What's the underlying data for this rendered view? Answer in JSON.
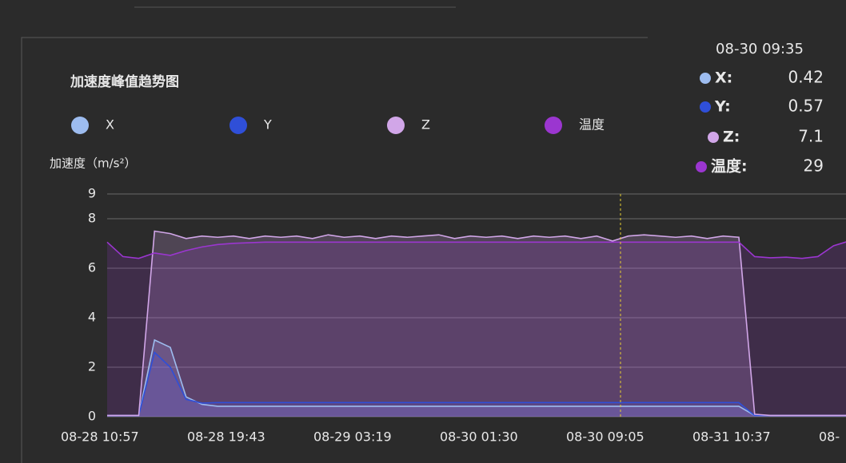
{
  "chart_data": {
    "type": "line",
    "title": "加速度峰值趋势图",
    "y_label": "加速度（m/s²）",
    "categories": [
      "08-28 10:57",
      null,
      null,
      null,
      null,
      null,
      null,
      null,
      "08-28 19:43",
      null,
      null,
      null,
      null,
      null,
      null,
      null,
      "08-29 03:19",
      null,
      null,
      null,
      null,
      null,
      null,
      null,
      "08-30 01:30",
      null,
      null,
      null,
      null,
      null,
      null,
      null,
      "08-30 09:05",
      null,
      null,
      null,
      null,
      null,
      null,
      null,
      "08-31 10:37",
      null,
      null,
      null,
      null,
      null,
      null,
      null,
      "08-"
    ],
    "series": [
      {
        "name": "X",
        "color": "#9dbcef",
        "values": [
          0.05,
          0.05,
          0.05,
          3.1,
          2.8,
          0.8,
          0.5,
          0.42,
          0.42,
          0.42,
          0.42,
          0.42,
          0.42,
          0.42,
          0.42,
          0.42,
          0.42,
          0.42,
          0.42,
          0.42,
          0.42,
          0.42,
          0.42,
          0.42,
          0.42,
          0.42,
          0.42,
          0.42,
          0.42,
          0.42,
          0.42,
          0.42,
          0.42,
          0.42,
          0.42,
          0.42,
          0.42,
          0.42,
          0.42,
          0.42,
          0.42,
          0.05,
          0.05,
          0.05,
          0.05,
          0.05,
          0.05,
          0.05,
          0.05
        ]
      },
      {
        "name": "Y",
        "color": "#2f4fd8",
        "values": [
          0.05,
          0.05,
          0.05,
          2.6,
          2.0,
          0.7,
          0.55,
          0.57,
          0.57,
          0.57,
          0.57,
          0.57,
          0.57,
          0.57,
          0.57,
          0.57,
          0.57,
          0.57,
          0.57,
          0.57,
          0.57,
          0.57,
          0.57,
          0.57,
          0.57,
          0.57,
          0.57,
          0.57,
          0.57,
          0.57,
          0.57,
          0.57,
          0.57,
          0.57,
          0.57,
          0.57,
          0.57,
          0.57,
          0.57,
          0.57,
          0.57,
          0.05,
          0.05,
          0.05,
          0.05,
          0.05,
          0.05,
          0.05,
          0.05
        ]
      },
      {
        "name": "Z",
        "color": "#d1a6e8",
        "values": [
          0.05,
          0.05,
          0.05,
          7.5,
          7.4,
          7.2,
          7.3,
          7.25,
          7.3,
          7.2,
          7.3,
          7.25,
          7.3,
          7.2,
          7.35,
          7.25,
          7.3,
          7.2,
          7.3,
          7.25,
          7.3,
          7.35,
          7.2,
          7.3,
          7.25,
          7.3,
          7.2,
          7.3,
          7.25,
          7.3,
          7.2,
          7.3,
          7.1,
          7.3,
          7.35,
          7.3,
          7.25,
          7.3,
          7.2,
          7.3,
          7.25,
          0.1,
          0.05,
          0.05,
          0.05,
          0.05,
          0.05,
          0.05,
          0.05
        ]
      },
      {
        "name": "温度",
        "color": "#9b36d0",
        "axis": "y2",
        "values": [
          29,
          26.6,
          26.3,
          27.2,
          26.8,
          27.6,
          28.2,
          28.6,
          28.8,
          28.9,
          29,
          29,
          29,
          29,
          29,
          29,
          29,
          29,
          29,
          29,
          29,
          29,
          29,
          29,
          29,
          29,
          29,
          29,
          29,
          29,
          29,
          29,
          29,
          29,
          29,
          29,
          29,
          29,
          29,
          29,
          29,
          26.6,
          26.4,
          26.5,
          26.3,
          26.6,
          28.4,
          29.2,
          29.4
        ]
      }
    ],
    "ylim": [
      0,
      9
    ],
    "yticks": [
      0,
      2,
      4,
      6,
      8,
      9
    ],
    "y2lim": [
      0,
      37
    ],
    "grid": true,
    "tooltip": {
      "time": "08-30 09:35",
      "items": [
        {
          "label": "X:",
          "value": 0.42
        },
        {
          "label": "Y:",
          "value": 0.57
        },
        {
          "label": "Z:",
          "value": 7.1
        },
        {
          "label": "温度:",
          "value": 29
        }
      ]
    }
  }
}
